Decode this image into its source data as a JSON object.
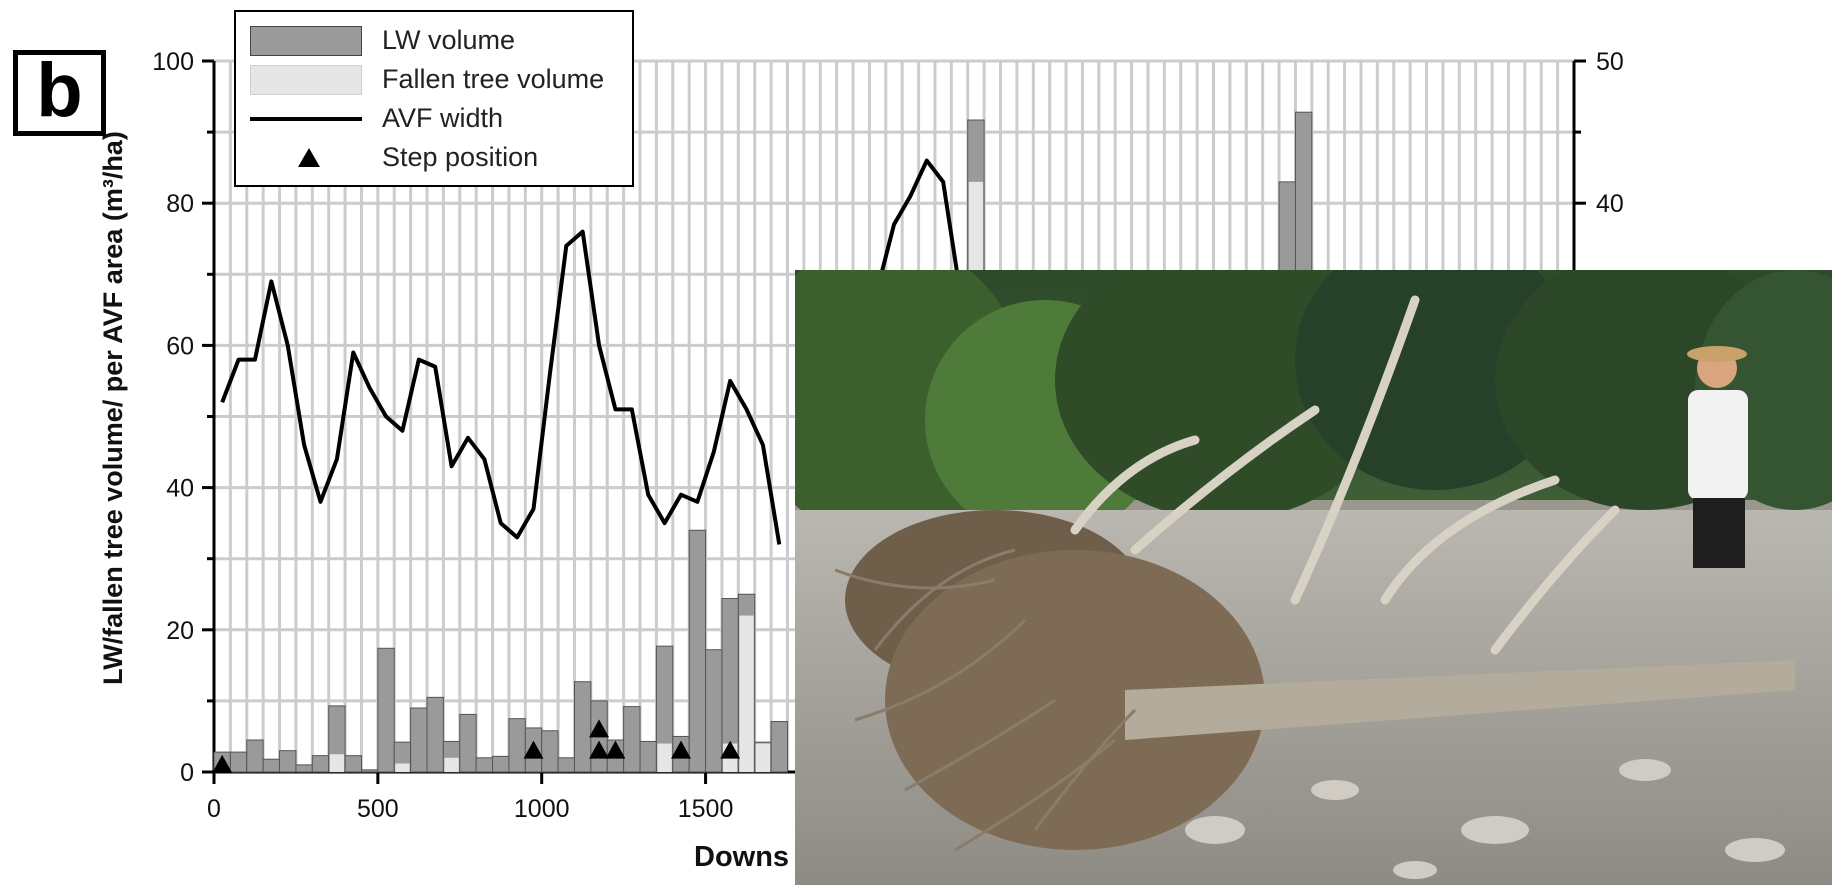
{
  "panel_label": "b",
  "legend": {
    "lw_volume": "LW volume",
    "fallen_tree_volume": "Fallen tree volume",
    "avf_width": "AVF width",
    "step_position": "Step position"
  },
  "colors": {
    "lw_bar": "#9a9a9a",
    "fallen_bar": "#e6e6e6",
    "line": "#000000",
    "grid": "#cccccc"
  },
  "chart_data": {
    "type": "bar",
    "ylabel": "LW/fallen tree volume/ per AVF area (m³/ha)",
    "xlabel_visible": "Downs",
    "xlim": [
      0,
      4150
    ],
    "ylim": [
      0,
      100
    ],
    "y2lim": [
      0,
      50
    ],
    "x_ticks": [
      "0",
      "500",
      "1000",
      "1500"
    ],
    "y_ticks": [
      "0",
      "20",
      "40",
      "60",
      "80",
      "100"
    ],
    "y2_ticks_visible": [
      "40",
      "50"
    ],
    "grid": true,
    "legend_position": "top-left",
    "bin_width": 50,
    "series": [
      {
        "name": "LW volume",
        "kind": "bar",
        "x": [
          25,
          75,
          125,
          175,
          225,
          275,
          325,
          375,
          425,
          475,
          525,
          575,
          625,
          675,
          725,
          775,
          825,
          875,
          925,
          975,
          1025,
          1075,
          1125,
          1175,
          1225,
          1275,
          1325,
          1375,
          1425,
          1475,
          1525,
          1575,
          1625,
          1675,
          1725,
          2325,
          3275,
          3325
        ],
        "values": [
          2.8,
          2.8,
          4.5,
          1.8,
          3.0,
          1.0,
          2.3,
          9.3,
          2.3,
          0.3,
          17.4,
          4.2,
          9.0,
          10.5,
          4.3,
          8.1,
          2.0,
          2.2,
          7.5,
          6.2,
          5.8,
          2.0,
          12.7,
          10.0,
          4.5,
          9.2,
          4.3,
          17.7,
          5.0,
          34.0,
          17.2,
          24.4,
          25.0,
          4.2,
          7.1,
          91.7,
          83.0,
          92.8
        ]
      },
      {
        "name": "Fallen tree volume",
        "kind": "bar",
        "x": [
          375,
          575,
          725,
          1375,
          1575,
          1625,
          1675,
          2325
        ],
        "values": [
          2.5,
          1.2,
          2.0,
          4.0,
          4.0,
          22.0,
          4.0,
          83.0
        ]
      },
      {
        "name": "AVF width",
        "kind": "line",
        "axis": "right",
        "x": [
          25,
          75,
          125,
          175,
          225,
          275,
          325,
          375,
          425,
          475,
          525,
          575,
          625,
          675,
          725,
          775,
          825,
          875,
          925,
          975,
          1025,
          1075,
          1125,
          1175,
          1225,
          1275,
          1325,
          1375,
          1425,
          1475,
          1525,
          1575,
          1625,
          1675,
          1725,
          2025,
          2075,
          2125,
          2175,
          2225,
          2275,
          2325
        ],
        "values": [
          26.0,
          29.0,
          29.0,
          34.5,
          30.0,
          23.0,
          19.0,
          22.0,
          29.5,
          27.0,
          25.0,
          24.0,
          29.0,
          28.5,
          21.5,
          23.5,
          22.0,
          17.5,
          16.5,
          18.5,
          28.0,
          37.0,
          38.0,
          30.0,
          25.5,
          25.5,
          19.5,
          17.5,
          19.5,
          19.0,
          22.5,
          27.5,
          25.5,
          23.0,
          16.0,
          34.0,
          38.5,
          40.5,
          43.0,
          41.5,
          34.0,
          34.0
        ]
      },
      {
        "name": "Step position",
        "kind": "marker",
        "x": [
          25,
          975,
          1175,
          1175,
          1225,
          1425,
          1575
        ],
        "values": [
          1.0,
          3.0,
          3.0,
          6.0,
          3.0,
          3.0,
          3.0
        ]
      }
    ]
  },
  "photo": {
    "description_icon": "riverbed-driftwood-photo-icon"
  }
}
